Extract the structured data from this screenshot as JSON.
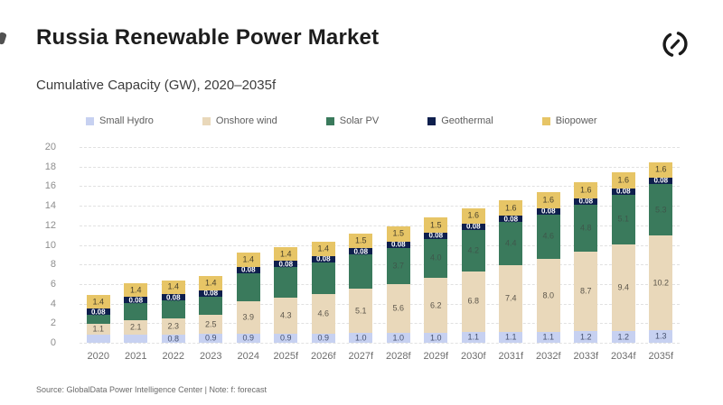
{
  "page": {
    "title": "Russia Renewable Power Market",
    "subtitle": "Cumulative Capacity (GW), 2020–2035f",
    "source_note": "Source: GlobalData Power Intelligence Center | Note: f: forecast"
  },
  "colors": {
    "small_hydro": "#c7d1f1",
    "onshore_wind": "#e9d8ba",
    "solar_pv": "#3a7a5c",
    "geothermal": "#0e1f4d",
    "biopower": "#e7c566",
    "grid": "#e1e1e1",
    "logo": "#1a1a1a"
  },
  "chart_data": {
    "type": "bar",
    "stacked": true,
    "title": "Cumulative Capacity (GW), 2020–2035f",
    "xlabel": "",
    "ylabel": "",
    "ylim": [
      0,
      20
    ],
    "yticks": [
      0,
      2,
      4,
      6,
      8,
      10,
      12,
      14,
      16,
      18,
      20
    ],
    "grid": "horizontal-dashed",
    "legend_position": "top",
    "categories": [
      "2020",
      "2021",
      "2022",
      "2023",
      "2024",
      "2025f",
      "2026f",
      "2027f",
      "2028f",
      "2029f",
      "2030f",
      "2031f",
      "2032f",
      "2033f",
      "2034f",
      "2035f"
    ],
    "series": [
      {
        "name": "Small Hydro",
        "color": "#c7d1f1",
        "label_color": "#44506e",
        "values": [
          0.8,
          0.8,
          0.8,
          0.9,
          0.9,
          0.9,
          0.9,
          1.0,
          1.0,
          1.0,
          1.1,
          1.1,
          1.1,
          1.2,
          1.2,
          1.3
        ],
        "labels": [
          "",
          "",
          "0.8",
          "0.9",
          "0.9",
          "0.9",
          "0.9",
          "1.0",
          "1.0",
          "1.0",
          "1.1",
          "1.1",
          "1.1",
          "1.2",
          "1.2",
          "1.3"
        ]
      },
      {
        "name": "Onshore wind",
        "color": "#e9d8ba",
        "label_color": "#5c564b",
        "values": [
          1.1,
          2.1,
          2.3,
          2.5,
          3.9,
          4.3,
          4.6,
          5.1,
          5.6,
          6.2,
          6.8,
          7.4,
          8.0,
          8.7,
          9.4,
          10.2
        ],
        "labels": [
          "1.1",
          "2.1",
          "2.3",
          "2.5",
          "3.9",
          "4.3",
          "4.6",
          "5.1",
          "5.6",
          "6.2",
          "6.8",
          "7.4",
          "8.0",
          "8.7",
          "9.4",
          "10.2"
        ]
      },
      {
        "name": "Solar PV",
        "color": "#3a7a5c",
        "label_color": "#3e574b",
        "values": [
          1.5,
          1.7,
          1.8,
          1.9,
          2.9,
          3.1,
          3.3,
          3.5,
          3.7,
          4.0,
          4.2,
          4.4,
          4.6,
          4.8,
          5.1,
          5.3
        ],
        "labels": [
          "",
          "",
          "",
          "",
          "",
          "",
          "",
          "",
          "3.7",
          "4.0",
          "4.2",
          "4.4",
          "4.6",
          "4.8",
          "5.1",
          "5.3"
        ]
      },
      {
        "name": "Geothermal",
        "color": "#0e1f4d",
        "label_color": "#ffffff",
        "dark": true,
        "values": [
          0.08,
          0.08,
          0.08,
          0.08,
          0.08,
          0.08,
          0.08,
          0.08,
          0.08,
          0.08,
          0.08,
          0.08,
          0.08,
          0.08,
          0.08,
          0.08
        ],
        "labels": [
          "0.08",
          "0.08",
          "0.08",
          "0.08",
          "0.08",
          "0.08",
          "0.08",
          "0.08",
          "0.08",
          "0.08",
          "0.08",
          "0.08",
          "0.08",
          "0.08",
          "0.08",
          "0.08"
        ]
      },
      {
        "name": "Biopower",
        "color": "#e7c566",
        "label_color": "#463f2c",
        "values": [
          1.4,
          1.4,
          1.4,
          1.4,
          1.4,
          1.4,
          1.4,
          1.5,
          1.5,
          1.5,
          1.6,
          1.6,
          1.6,
          1.6,
          1.6,
          1.6
        ],
        "labels": [
          "1.4",
          "1.4",
          "1.4",
          "1.4",
          "1.4",
          "1.4",
          "1.4",
          "1.5",
          "1.5",
          "1.5",
          "1.6",
          "1.6",
          "1.6",
          "1.6",
          "1.6",
          "1.6"
        ]
      }
    ]
  }
}
